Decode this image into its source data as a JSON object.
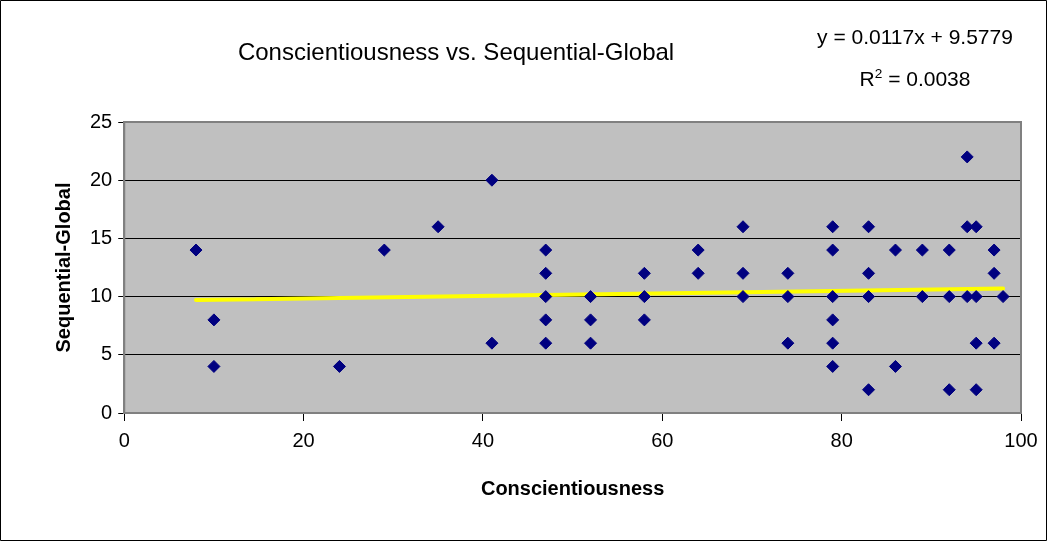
{
  "chart_data": {
    "type": "scatter",
    "title": "Conscientiousness vs. Sequential-Global",
    "xlabel": "Conscientiousness",
    "ylabel": "Sequential-Global",
    "annotations": [
      "y = 0.0117x + 9.5779",
      "R$^{2}$ = 0.0038"
    ],
    "xlim": [
      0,
      100
    ],
    "xticks": [
      0,
      20,
      40,
      60,
      80,
      100
    ],
    "ylim": [
      0,
      25
    ],
    "yticks": [
      0,
      5,
      10,
      15,
      20,
      25
    ],
    "grid": "y",
    "legend": false,
    "series": [
      {
        "color": "#000080",
        "marker": "diamond",
        "x": [
          8,
          10,
          10,
          24,
          29,
          35,
          41,
          41,
          47,
          47,
          47,
          47,
          47,
          52,
          52,
          52,
          58,
          58,
          58,
          64,
          64,
          69,
          69,
          69,
          74,
          74,
          74,
          79,
          79,
          79,
          79,
          79,
          79,
          83,
          83,
          83,
          83,
          86,
          86,
          89,
          89,
          92,
          92,
          92,
          94,
          94,
          94,
          95,
          95,
          95,
          95,
          97,
          97,
          97,
          98
        ],
        "values": [
          14,
          8,
          4,
          4,
          14,
          16,
          20,
          6,
          14,
          12,
          10,
          8,
          6,
          10,
          8,
          6,
          12,
          10,
          8,
          14,
          12,
          16,
          12,
          10,
          12,
          10,
          6,
          16,
          14,
          10,
          8,
          6,
          4,
          16,
          12,
          10,
          2,
          14,
          4,
          14,
          10,
          14,
          10,
          2,
          22,
          16,
          10,
          16,
          10,
          6,
          2,
          14,
          12,
          6,
          10
        ]
      },
      {
        "type": "line",
        "color": "#ffff00",
        "marker": "none",
        "x": [
          8,
          98
        ],
        "values": [
          9.7,
          10.7
        ]
      }
    ]
  }
}
